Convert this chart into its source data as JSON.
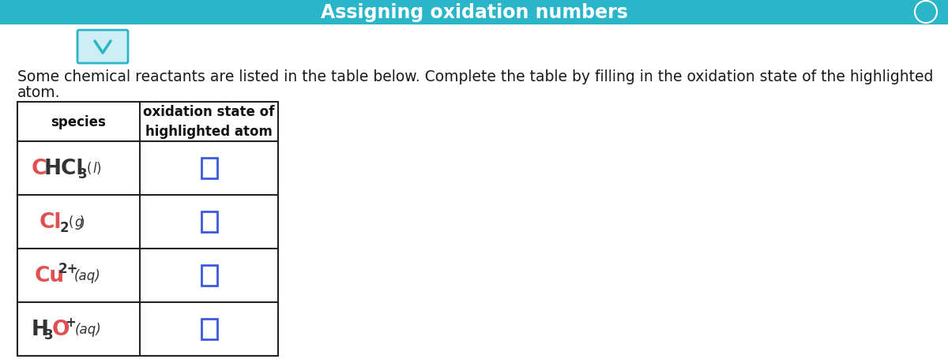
{
  "title": "Assigning oxidation numbers",
  "title_bg_color": "#2ab5c8",
  "title_text_color": "#ffffff",
  "body_bg_color": "#ffffff",
  "description_line1": "Some chemical reactants are listed in the table below. Complete the table by filling in the oxidation state of the highlighted",
  "description_line2": "atom.",
  "desc_fontsize": 13.5,
  "table_header_col1": "species",
  "table_header_col2": "oxidation state of\nhighlighted atom",
  "header_fontsize": 12,
  "table_border_color": "#222222",
  "answer_box_color": "#3b5bdb",
  "chevron_bg_color": "#cceef4",
  "chevron_border_color": "#2ab5c8",
  "scroll_bg_color": "#e0e0e0",
  "scroll_thumb_color": "#b0b8bf",
  "highlighted_color": "#e05050",
  "normal_color": "#333333"
}
